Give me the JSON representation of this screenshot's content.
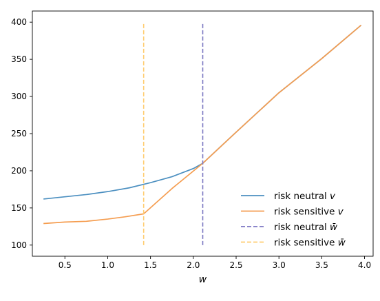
{
  "chart_data": {
    "type": "line",
    "title": "",
    "xlabel": "w",
    "ylabel": "",
    "xlim": [
      0.12,
      4.1
    ],
    "ylim": [
      85,
      415
    ],
    "xticks": [
      0.5,
      1.0,
      1.5,
      2.0,
      2.5,
      3.0,
      3.5,
      4.0
    ],
    "xtick_labels": [
      "0.5",
      "1.0",
      "1.5",
      "2.0",
      "2.5",
      "3.0",
      "3.5",
      "4.0"
    ],
    "yticks": [
      100,
      150,
      200,
      250,
      300,
      350,
      400
    ],
    "ytick_labels": [
      "100",
      "150",
      "200",
      "250",
      "300",
      "350",
      "400"
    ],
    "grid": false,
    "legend_position": "lower-right",
    "legend_frame": false,
    "series": [
      {
        "name": "risk neutral v",
        "kind": "curve",
        "color": "#4b8fc0",
        "style": "solid",
        "x": [
          0.25,
          0.5,
          0.75,
          1.0,
          1.25,
          1.5,
          1.75,
          2.0,
          2.11,
          2.5,
          3.0,
          3.5,
          3.96
        ],
        "y": [
          162,
          165,
          168,
          172,
          177,
          184,
          192,
          203,
          210,
          252,
          305,
          351,
          396
        ]
      },
      {
        "name": "risk sensitive v",
        "kind": "curve",
        "color": "#f59d50",
        "style": "solid",
        "x": [
          0.25,
          0.5,
          0.75,
          1.0,
          1.2,
          1.42,
          1.75,
          2.11,
          2.5,
          3.0,
          3.5,
          3.96
        ],
        "y": [
          129,
          131,
          132,
          135,
          138,
          142,
          176,
          210,
          252,
          305,
          351,
          396
        ]
      },
      {
        "name": "risk neutral w̄",
        "kind": "vline",
        "color": "#7b76c2",
        "style": "dashed",
        "x": 2.11,
        "y_range": [
          100,
          400
        ]
      },
      {
        "name": "risk sensitive w̄",
        "kind": "vline",
        "color": "#ffcd70",
        "style": "dashed",
        "x": 1.42,
        "y_range": [
          100,
          400
        ]
      }
    ],
    "legend": [
      {
        "prefix": "risk neutral ",
        "var": "v"
      },
      {
        "prefix": "risk sensitive ",
        "var": "v"
      },
      {
        "prefix": "risk neutral ",
        "var": "w̄"
      },
      {
        "prefix": "risk sensitive ",
        "var": "w̄"
      }
    ]
  }
}
